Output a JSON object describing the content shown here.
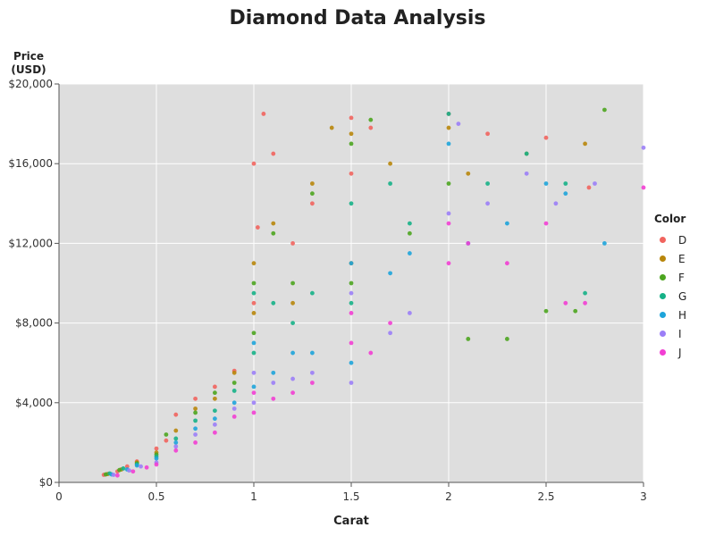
{
  "chart_data": {
    "type": "scatter",
    "title": "Diamond Data Analysis",
    "xlabel": "Carat",
    "ylabel_lines": [
      "Price",
      "(USD)"
    ],
    "xlim": [
      0,
      3
    ],
    "ylim": [
      0,
      20000
    ],
    "x_ticks": [
      {
        "value": 0,
        "label": "0"
      },
      {
        "value": 0.5,
        "label": "0.5"
      },
      {
        "value": 1,
        "label": "1"
      },
      {
        "value": 1.5,
        "label": "1.5"
      },
      {
        "value": 2,
        "label": "2"
      },
      {
        "value": 2.5,
        "label": "2.5"
      },
      {
        "value": 3,
        "label": "3"
      }
    ],
    "y_ticks": [
      {
        "value": 0,
        "label": "$0"
      },
      {
        "value": 4000,
        "label": "$4,000"
      },
      {
        "value": 8000,
        "label": "$8,000"
      },
      {
        "value": 12000,
        "label": "$12,000"
      },
      {
        "value": 16000,
        "label": "$16,000"
      },
      {
        "value": 20000,
        "label": "$20,000"
      }
    ],
    "grid": true,
    "background": "#dedede",
    "legend": {
      "title": "Color",
      "placement": "right"
    },
    "series": [
      {
        "name": "D",
        "color": "#f1645e",
        "points": [
          [
            0.23,
            380
          ],
          [
            0.3,
            550
          ],
          [
            0.35,
            800
          ],
          [
            0.4,
            1050
          ],
          [
            0.5,
            1700
          ],
          [
            0.55,
            2100
          ],
          [
            0.6,
            3400
          ],
          [
            0.7,
            4200
          ],
          [
            0.8,
            4800
          ],
          [
            0.9,
            5600
          ],
          [
            1.0,
            9000
          ],
          [
            1.0,
            16000
          ],
          [
            1.02,
            12800
          ],
          [
            1.05,
            18500
          ],
          [
            1.1,
            16500
          ],
          [
            1.2,
            12000
          ],
          [
            1.3,
            14000
          ],
          [
            1.5,
            15500
          ],
          [
            1.5,
            18300
          ],
          [
            1.6,
            17800
          ],
          [
            2.0,
            18500
          ],
          [
            2.2,
            17500
          ],
          [
            2.5,
            17300
          ],
          [
            2.72,
            14800
          ]
        ]
      },
      {
        "name": "E",
        "color": "#b8860b",
        "points": [
          [
            0.25,
            420
          ],
          [
            0.32,
            650
          ],
          [
            0.4,
            1000
          ],
          [
            0.5,
            1500
          ],
          [
            0.6,
            2600
          ],
          [
            0.7,
            3700
          ],
          [
            0.8,
            4200
          ],
          [
            0.9,
            5500
          ],
          [
            1.0,
            8500
          ],
          [
            1.0,
            11000
          ],
          [
            1.1,
            13000
          ],
          [
            1.2,
            9000
          ],
          [
            1.3,
            15000
          ],
          [
            1.4,
            17800
          ],
          [
            1.5,
            11000
          ],
          [
            1.5,
            17500
          ],
          [
            1.7,
            16000
          ],
          [
            2.0,
            17800
          ],
          [
            2.1,
            15500
          ],
          [
            2.4,
            16500
          ],
          [
            2.7,
            17000
          ]
        ]
      },
      {
        "name": "F",
        "color": "#4ca51f",
        "points": [
          [
            0.24,
            400
          ],
          [
            0.31,
            620
          ],
          [
            0.4,
            950
          ],
          [
            0.5,
            1400
          ],
          [
            0.55,
            2400
          ],
          [
            0.7,
            3500
          ],
          [
            0.8,
            4500
          ],
          [
            0.9,
            5000
          ],
          [
            1.0,
            7500
          ],
          [
            1.0,
            10000
          ],
          [
            1.1,
            12500
          ],
          [
            1.2,
            10000
          ],
          [
            1.3,
            14500
          ],
          [
            1.5,
            10000
          ],
          [
            1.5,
            17000
          ],
          [
            1.6,
            18200
          ],
          [
            1.8,
            12500
          ],
          [
            2.0,
            15000
          ],
          [
            2.1,
            7200
          ],
          [
            2.3,
            7200
          ],
          [
            2.5,
            8600
          ],
          [
            2.65,
            8600
          ],
          [
            2.8,
            18700
          ]
        ]
      },
      {
        "name": "G",
        "color": "#16b187",
        "points": [
          [
            0.26,
            450
          ],
          [
            0.33,
            700
          ],
          [
            0.4,
            900
          ],
          [
            0.5,
            1300
          ],
          [
            0.6,
            2200
          ],
          [
            0.7,
            3100
          ],
          [
            0.8,
            3600
          ],
          [
            0.9,
            4600
          ],
          [
            1.0,
            6500
          ],
          [
            1.0,
            9500
          ],
          [
            1.1,
            9000
          ],
          [
            1.2,
            8000
          ],
          [
            1.3,
            9500
          ],
          [
            1.5,
            9000
          ],
          [
            1.5,
            14000
          ],
          [
            1.7,
            15000
          ],
          [
            1.8,
            13000
          ],
          [
            2.0,
            18500
          ],
          [
            2.2,
            15000
          ],
          [
            2.4,
            16500
          ],
          [
            2.6,
            15000
          ],
          [
            2.7,
            9500
          ]
        ]
      },
      {
        "name": "H",
        "color": "#1ea4da",
        "points": [
          [
            0.27,
            400
          ],
          [
            0.35,
            650
          ],
          [
            0.4,
            850
          ],
          [
            0.5,
            1200
          ],
          [
            0.6,
            2000
          ],
          [
            0.7,
            2700
          ],
          [
            0.8,
            3200
          ],
          [
            0.9,
            4000
          ],
          [
            1.0,
            4800
          ],
          [
            1.0,
            7000
          ],
          [
            1.1,
            5500
          ],
          [
            1.2,
            6500
          ],
          [
            1.3,
            6500
          ],
          [
            1.5,
            6000
          ],
          [
            1.5,
            11000
          ],
          [
            1.7,
            10500
          ],
          [
            1.8,
            11500
          ],
          [
            2.0,
            17000
          ],
          [
            2.1,
            12000
          ],
          [
            2.3,
            13000
          ],
          [
            2.5,
            15000
          ],
          [
            2.6,
            14500
          ],
          [
            2.8,
            12000
          ]
        ]
      },
      {
        "name": "I",
        "color": "#9b7ef7",
        "points": [
          [
            0.28,
            380
          ],
          [
            0.36,
            600
          ],
          [
            0.42,
            800
          ],
          [
            0.5,
            1000
          ],
          [
            0.6,
            1800
          ],
          [
            0.7,
            2400
          ],
          [
            0.8,
            2900
          ],
          [
            0.9,
            3700
          ],
          [
            1.0,
            4000
          ],
          [
            1.0,
            5500
          ],
          [
            1.1,
            5000
          ],
          [
            1.2,
            5200
          ],
          [
            1.3,
            5500
          ],
          [
            1.5,
            5000
          ],
          [
            1.5,
            9500
          ],
          [
            1.7,
            7500
          ],
          [
            1.8,
            8500
          ],
          [
            2.0,
            13500
          ],
          [
            2.05,
            18000
          ],
          [
            2.2,
            14000
          ],
          [
            2.4,
            15500
          ],
          [
            2.55,
            14000
          ],
          [
            2.75,
            15000
          ],
          [
            3.0,
            16800
          ]
        ]
      },
      {
        "name": "J",
        "color": "#f23ed3",
        "points": [
          [
            0.3,
            350
          ],
          [
            0.38,
            550
          ],
          [
            0.45,
            750
          ],
          [
            0.5,
            900
          ],
          [
            0.6,
            1600
          ],
          [
            0.7,
            2000
          ],
          [
            0.8,
            2500
          ],
          [
            0.9,
            3300
          ],
          [
            1.0,
            3500
          ],
          [
            1.0,
            4500
          ],
          [
            1.1,
            4200
          ],
          [
            1.2,
            4500
          ],
          [
            1.3,
            5000
          ],
          [
            1.5,
            7000
          ],
          [
            1.5,
            8500
          ],
          [
            1.6,
            6500
          ],
          [
            1.7,
            8000
          ],
          [
            2.0,
            11000
          ],
          [
            2.0,
            13000
          ],
          [
            2.1,
            12000
          ],
          [
            2.3,
            11000
          ],
          [
            2.5,
            13000
          ],
          [
            2.6,
            9000
          ],
          [
            2.7,
            9000
          ],
          [
            3.0,
            14800
          ]
        ]
      }
    ]
  }
}
